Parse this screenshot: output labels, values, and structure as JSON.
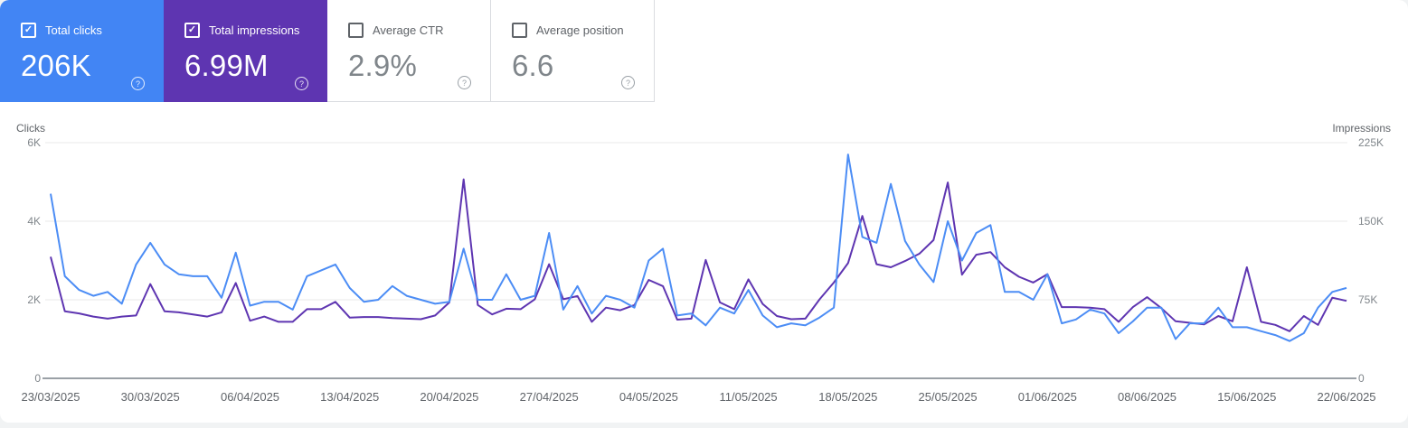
{
  "icons": {
    "check": "✓",
    "help": "?"
  },
  "cards": [
    {
      "label": "Total clicks",
      "value": "206K",
      "checked": true,
      "bg": "#4285f4",
      "text": "#ffffff"
    },
    {
      "label": "Total impressions",
      "value": "6.99M",
      "checked": true,
      "bg": "#5e35b1",
      "text": "#ffffff"
    },
    {
      "label": "Average CTR",
      "value": "2.9%",
      "checked": false,
      "bg": "#ffffff",
      "text": "#80868b"
    },
    {
      "label": "Average position",
      "value": "6.6",
      "checked": false,
      "bg": "#ffffff",
      "text": "#80868b"
    }
  ],
  "chart_data": {
    "type": "line",
    "grid": true,
    "legend_position": "none",
    "left_axis": {
      "title": "Clicks",
      "max": 6000,
      "tick_values": [
        6000,
        4000,
        2000,
        0
      ],
      "tick_labels": [
        "6K",
        "4K",
        "2K",
        "0"
      ]
    },
    "right_axis": {
      "title": "Impressions",
      "max": 225000,
      "tick_values": [
        225000,
        150000,
        75000,
        0
      ],
      "tick_labels": [
        "225K",
        "150K",
        "75K",
        "0"
      ]
    },
    "x_tick_labels": [
      "23/03/2025",
      "30/03/2025",
      "06/04/2025",
      "13/04/2025",
      "20/04/2025",
      "27/04/2025",
      "04/05/2025",
      "11/05/2025",
      "18/05/2025",
      "25/05/2025",
      "01/06/2025",
      "08/06/2025",
      "15/06/2025",
      "22/06/2025"
    ],
    "x_range": {
      "start_date": "23/03/2025",
      "end_date": "22/06/2025",
      "points": 92
    },
    "gridline_color": "#e8e8e8",
    "baseline_color": "#9aa0a6",
    "series": [
      {
        "name": "Total clicks",
        "axis": "left",
        "color": "#4c8df5",
        "values": [
          4700,
          2600,
          2250,
          2100,
          2200,
          1900,
          2900,
          3450,
          2900,
          2650,
          2600,
          2600,
          2050,
          3200,
          1850,
          1950,
          1950,
          1750,
          2600,
          2750,
          2900,
          2300,
          1950,
          2000,
          2350,
          2100,
          2000,
          1900,
          1950,
          3300,
          2000,
          2000,
          2650,
          2000,
          2100,
          3700,
          1750,
          2350,
          1650,
          2100,
          2000,
          1800,
          3000,
          3300,
          1600,
          1650,
          1350,
          1800,
          1650,
          2250,
          1600,
          1300,
          1400,
          1350,
          1550,
          1800,
          5700,
          3600,
          3450,
          4950,
          3500,
          2900,
          2450,
          4000,
          3000,
          3700,
          3900,
          2200,
          2200,
          2000,
          2650,
          1400,
          1500,
          1750,
          1650,
          1150,
          1450,
          1800,
          1800,
          1000,
          1400,
          1400,
          1800,
          1300,
          1300,
          1200,
          1100,
          950,
          1150,
          1800,
          2200,
          2300
        ]
      },
      {
        "name": "Total impressions",
        "axis": "right",
        "color": "#5e35b1",
        "values": [
          116000,
          64000,
          62000,
          59000,
          57000,
          59000,
          60000,
          90000,
          64000,
          63000,
          61000,
          59000,
          63000,
          91000,
          55000,
          59000,
          54000,
          54000,
          66000,
          66000,
          73000,
          58000,
          58500,
          58500,
          57500,
          57000,
          56500,
          60000,
          72500,
          190000,
          70000,
          61000,
          66500,
          66000,
          75500,
          109000,
          75500,
          78500,
          54000,
          67500,
          65000,
          70000,
          94000,
          88000,
          56000,
          57000,
          113000,
          72500,
          66000,
          94500,
          71000,
          59500,
          56500,
          57000,
          75500,
          91500,
          110000,
          155000,
          109000,
          106000,
          112000,
          119000,
          132000,
          187000,
          99000,
          118000,
          120500,
          106000,
          97000,
          91500,
          99500,
          68000,
          68000,
          67500,
          66000,
          54000,
          68000,
          77500,
          67000,
          54500,
          53000,
          51500,
          59500,
          54500,
          106000,
          54000,
          51000,
          45000,
          59500,
          51000,
          77000,
          74000
        ]
      }
    ]
  }
}
